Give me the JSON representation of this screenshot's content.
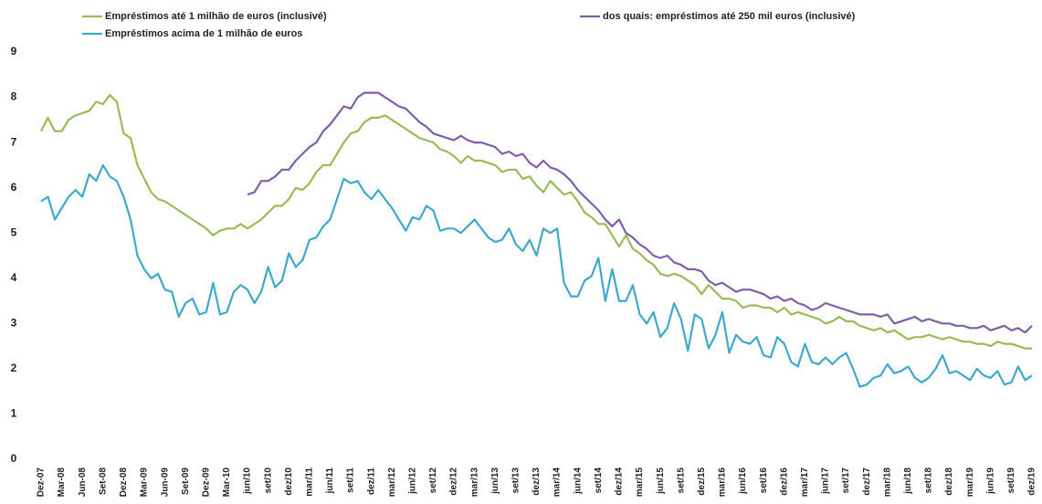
{
  "chart_data": {
    "type": "line",
    "categories": [
      "Dez-07",
      null,
      null,
      "Mar-08",
      null,
      null,
      "Jun-08",
      null,
      null,
      "Set-08",
      null,
      null,
      "Dez-08",
      null,
      null,
      "Mar-09",
      null,
      null,
      "Jun-09",
      null,
      null,
      "Set-09",
      null,
      null,
      "Dez-09",
      null,
      null,
      "Mar-10",
      null,
      null,
      "jun/10",
      null,
      null,
      "set/10",
      null,
      null,
      "dez/10",
      null,
      null,
      "mar/11",
      null,
      null,
      "jun/11",
      null,
      null,
      "set/11",
      null,
      null,
      "dez/11",
      null,
      null,
      "mar/12",
      null,
      null,
      "jun/12",
      null,
      null,
      "set/12",
      null,
      null,
      "dez/12",
      null,
      null,
      "mar/13",
      null,
      null,
      "jun/13",
      null,
      null,
      "set/13",
      null,
      null,
      "dez/13",
      null,
      null,
      "mar/14",
      null,
      null,
      "jun/14",
      null,
      null,
      "set/14",
      null,
      null,
      "dez/14",
      null,
      null,
      "mar/15",
      null,
      null,
      "jun/15",
      null,
      null,
      "set/15",
      null,
      null,
      "dez/15",
      null,
      null,
      "mar/16",
      null,
      null,
      "jun/16",
      null,
      null,
      "set/16",
      null,
      null,
      "dez/16",
      null,
      null,
      "mar/17",
      null,
      null,
      "jun/17",
      null,
      null,
      "set/17",
      null,
      null,
      "dez/17",
      null,
      null,
      "mar/18",
      null,
      null,
      "jun/18",
      null,
      null,
      "set/18",
      null,
      null,
      "dez/18",
      null,
      null,
      "mar/19",
      null,
      null,
      "jun/19",
      null,
      null,
      "set/19",
      null,
      null,
      "dez/19"
    ],
    "series": [
      {
        "name": "Empréstimos até 1 milhão de euros (inclusivé)",
        "color": "#9bbb59",
        "values": [
          7.25,
          7.55,
          7.25,
          7.25,
          7.5,
          7.6,
          7.65,
          7.7,
          7.9,
          7.85,
          8.05,
          7.9,
          7.2,
          7.1,
          6.5,
          6.2,
          5.9,
          5.75,
          5.7,
          5.6,
          5.5,
          5.4,
          5.3,
          5.2,
          5.1,
          4.95,
          5.05,
          5.1,
          5.1,
          5.2,
          5.1,
          5.2,
          5.3,
          5.45,
          5.6,
          5.6,
          5.75,
          6.0,
          5.95,
          6.1,
          6.35,
          6.5,
          6.5,
          6.75,
          7.0,
          7.2,
          7.25,
          7.45,
          7.55,
          7.55,
          7.6,
          7.5,
          7.4,
          7.3,
          7.2,
          7.1,
          7.05,
          7.0,
          6.85,
          6.8,
          6.7,
          6.55,
          6.7,
          6.6,
          6.6,
          6.55,
          6.5,
          6.35,
          6.4,
          6.4,
          6.2,
          6.25,
          6.05,
          5.9,
          6.15,
          6.0,
          5.85,
          5.9,
          5.7,
          5.45,
          5.35,
          5.2,
          5.2,
          4.95,
          4.7,
          4.95,
          4.65,
          4.55,
          4.4,
          4.3,
          4.1,
          4.05,
          4.1,
          4.05,
          3.95,
          3.85,
          3.65,
          3.85,
          3.7,
          3.55,
          3.55,
          3.5,
          3.35,
          3.4,
          3.4,
          3.35,
          3.35,
          3.25,
          3.35,
          3.2,
          3.25,
          3.2,
          3.15,
          3.1,
          3.0,
          3.05,
          3.15,
          3.05,
          3.05,
          2.95,
          2.9,
          2.85,
          2.9,
          2.8,
          2.85,
          2.75,
          2.65,
          2.7,
          2.7,
          2.75,
          2.7,
          2.65,
          2.7,
          2.65,
          2.6,
          2.6,
          2.55,
          2.55,
          2.5,
          2.6,
          2.55,
          2.55,
          2.5,
          2.45,
          2.45
        ]
      },
      {
        "name": "dos quais: empréstimos até 250 mil euros (inclusivé)",
        "color": "#7f5fa8",
        "values": [
          null,
          null,
          null,
          null,
          null,
          null,
          null,
          null,
          null,
          null,
          null,
          null,
          null,
          null,
          null,
          null,
          null,
          null,
          null,
          null,
          null,
          null,
          null,
          null,
          null,
          null,
          null,
          null,
          null,
          null,
          5.85,
          5.9,
          6.15,
          6.15,
          6.25,
          6.4,
          6.4,
          6.6,
          6.75,
          6.9,
          7.0,
          7.25,
          7.4,
          7.6,
          7.8,
          7.75,
          8.0,
          8.1,
          8.1,
          8.1,
          8.0,
          7.9,
          7.8,
          7.75,
          7.6,
          7.45,
          7.35,
          7.2,
          7.15,
          7.1,
          7.05,
          7.15,
          7.05,
          7.0,
          7.0,
          6.95,
          6.9,
          6.75,
          6.8,
          6.7,
          6.75,
          6.55,
          6.45,
          6.6,
          6.45,
          6.4,
          6.3,
          6.15,
          5.95,
          5.8,
          5.65,
          5.5,
          5.3,
          5.15,
          5.3,
          5.0,
          4.9,
          4.75,
          4.65,
          4.5,
          4.45,
          4.5,
          4.35,
          4.3,
          4.2,
          4.2,
          4.15,
          3.95,
          3.85,
          3.9,
          3.8,
          3.7,
          3.75,
          3.75,
          3.7,
          3.65,
          3.55,
          3.6,
          3.5,
          3.55,
          3.45,
          3.4,
          3.3,
          3.35,
          3.45,
          3.4,
          3.35,
          3.3,
          3.25,
          3.2,
          3.2,
          3.2,
          3.15,
          3.2,
          3.0,
          3.05,
          3.1,
          3.15,
          3.05,
          3.1,
          3.05,
          3.0,
          3.0,
          2.95,
          2.95,
          2.9,
          2.9,
          2.95,
          2.85,
          2.9,
          2.95,
          2.85,
          2.9,
          2.8,
          2.95
        ]
      },
      {
        "name": "Empréstimos acima de 1 milhão de euros",
        "color": "#3fa9c9",
        "values": [
          5.7,
          5.8,
          5.3,
          5.55,
          5.8,
          5.95,
          5.8,
          6.3,
          6.15,
          6.5,
          6.25,
          6.15,
          5.8,
          5.3,
          4.5,
          4.2,
          4.0,
          4.1,
          3.75,
          3.7,
          3.15,
          3.45,
          3.55,
          3.2,
          3.25,
          3.9,
          3.2,
          3.25,
          3.7,
          3.85,
          3.75,
          3.45,
          3.7,
          4.25,
          3.8,
          3.95,
          4.55,
          4.25,
          4.4,
          4.85,
          4.9,
          5.15,
          5.3,
          5.75,
          6.2,
          6.1,
          6.15,
          5.9,
          5.75,
          5.95,
          5.75,
          5.55,
          5.3,
          5.05,
          5.35,
          5.3,
          5.6,
          5.5,
          5.05,
          5.1,
          5.1,
          5.0,
          5.15,
          5.3,
          5.1,
          4.9,
          4.8,
          4.85,
          5.1,
          4.75,
          4.6,
          4.85,
          4.5,
          5.1,
          5.0,
          5.1,
          3.9,
          3.6,
          3.6,
          3.95,
          4.05,
          4.45,
          3.5,
          4.2,
          3.5,
          3.5,
          3.85,
          3.2,
          3.0,
          3.25,
          2.7,
          2.9,
          3.45,
          3.1,
          2.4,
          3.2,
          3.1,
          2.45,
          2.75,
          3.25,
          2.35,
          2.75,
          2.6,
          2.55,
          2.7,
          2.3,
          2.25,
          2.7,
          2.55,
          2.15,
          2.05,
          2.55,
          2.15,
          2.1,
          2.25,
          2.1,
          2.25,
          2.35,
          2.0,
          1.6,
          1.65,
          1.8,
          1.85,
          2.1,
          1.9,
          1.95,
          2.05,
          1.8,
          1.7,
          1.8,
          2.0,
          2.3,
          1.9,
          1.95,
          1.85,
          1.75,
          2.0,
          1.85,
          1.8,
          1.95,
          1.65,
          1.7,
          2.05,
          1.75,
          1.85
        ]
      }
    ],
    "ylim": [
      0,
      9
    ],
    "yticks": [
      0,
      1,
      2,
      3,
      4,
      5,
      6,
      7,
      8,
      9
    ],
    "grid": false
  }
}
